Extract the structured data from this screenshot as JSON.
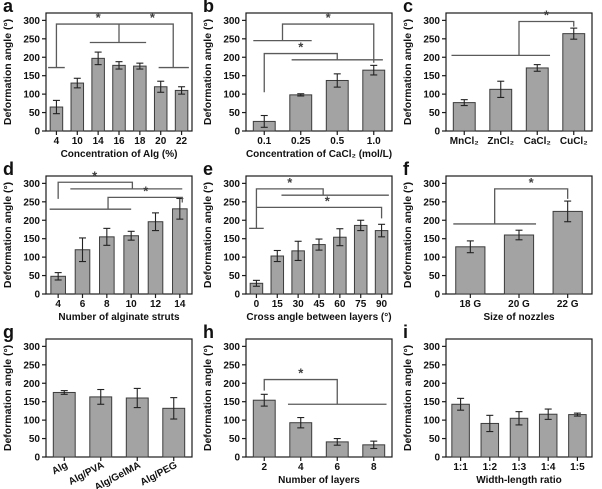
{
  "colors": {
    "bar_fill": "#a3a3a3",
    "bar_stroke": "#3c3c3c",
    "axis": "#1a1a1a",
    "error_bar": "#222222",
    "significance_line": "#5a5a5a",
    "text": "#111111",
    "background": "#ffffff"
  },
  "chart_data": [
    {
      "letter": "a",
      "type": "bar",
      "categories": [
        "4",
        "10",
        "14",
        "16",
        "18",
        "20",
        "22"
      ],
      "values": [
        65,
        130,
        197,
        178,
        176,
        120,
        110
      ],
      "errors": [
        18,
        13,
        17,
        10,
        8,
        15,
        10
      ],
      "xlabel": "Concentration of Alg (%)",
      "ylabel": "Deformation angle (°)",
      "ylim": [
        0,
        320
      ],
      "yticks": [
        0,
        50,
        100,
        150,
        200,
        250,
        300
      ],
      "rotated_xticks": false,
      "significance": {
        "label": "*",
        "lines": [
          [
            [
              -0.4,
              172
            ],
            [
              0.4,
              172
            ]
          ],
          [
            [
              0,
              172
            ],
            [
              0,
              290
            ],
            [
              5.6,
              290
            ],
            [
              5.6,
              172
            ]
          ],
          [
            [
              4.9,
              172
            ],
            [
              6.35,
              172
            ]
          ],
          [
            [
              3,
              290
            ],
            [
              3,
              240
            ]
          ],
          [
            [
              1.6,
              240
            ],
            [
              4.3,
              240
            ]
          ]
        ],
        "stars": [
          [
            2.0,
            290
          ],
          [
            4.6,
            290
          ]
        ]
      }
    },
    {
      "letter": "b",
      "type": "bar",
      "categories": [
        "0.1",
        "0.25",
        "0.5",
        "1.0"
      ],
      "values": [
        26,
        98,
        137,
        165
      ],
      "errors": [
        16,
        3,
        18,
        13
      ],
      "xlabel": "Concentration of CaCl₂ (mol/L)",
      "ylabel": "Deformation angle (°)",
      "ylim": [
        0,
        320
      ],
      "yticks": [
        0,
        50,
        100,
        150,
        200,
        250,
        300
      ],
      "rotated_xticks": false,
      "significance": {
        "label": "*",
        "lines": [
          [
            [
              -0.3,
              245
            ],
            [
              1.3,
              245
            ]
          ],
          [
            [
              0.5,
              245
            ],
            [
              0.5,
              290
            ],
            [
              3,
              290
            ],
            [
              3,
              185
            ]
          ],
          [
            [
              0,
              105
            ],
            [
              0,
              210
            ],
            [
              2,
              210
            ],
            [
              2,
              193
            ]
          ],
          [
            [
              0.75,
              193
            ],
            [
              3.25,
              193
            ]
          ]
        ],
        "stars": [
          [
            1.75,
            290
          ],
          [
            1.0,
            210
          ]
        ]
      }
    },
    {
      "letter": "c",
      "type": "bar",
      "categories": [
        "MnCl₂",
        "ZnCl₂",
        "CaCl₂",
        "CuCl₂"
      ],
      "values": [
        77,
        113,
        171,
        264
      ],
      "errors": [
        8,
        22,
        9,
        15
      ],
      "xlabel": "",
      "ylabel": "Deformation angle (°)",
      "ylim": [
        0,
        320
      ],
      "yticks": [
        0,
        50,
        100,
        150,
        200,
        250,
        300
      ],
      "rotated_xticks": false,
      "significance": {
        "label": "*",
        "lines": [
          [
            [
              -0.35,
              205
            ],
            [
              2.35,
              205
            ]
          ],
          [
            [
              1.5,
              205
            ],
            [
              1.5,
              297
            ],
            [
              3,
              297
            ],
            [
              3,
              283
            ]
          ]
        ],
        "stars": [
          [
            2.25,
            297
          ]
        ]
      }
    },
    {
      "letter": "d",
      "type": "bar",
      "categories": [
        "4",
        "6",
        "8",
        "10",
        "12",
        "14"
      ],
      "values": [
        48,
        120,
        155,
        158,
        196,
        231
      ],
      "errors": [
        10,
        32,
        23,
        12,
        24,
        28
      ],
      "xlabel": "Number of alginate struts",
      "ylabel": "Deformation angle (°)",
      "ylim": [
        0,
        320
      ],
      "yticks": [
        0,
        50,
        100,
        150,
        200,
        250,
        300
      ],
      "rotated_xticks": false,
      "significance": {
        "label": "*",
        "lines": [
          [
            [
              0,
              258
            ],
            [
              0,
              303
            ],
            [
              3.05,
              303
            ],
            [
              3.05,
              285
            ]
          ],
          [
            [
              0.5,
              285
            ],
            [
              5.1,
              285
            ]
          ],
          [
            [
              2.05,
              230
            ],
            [
              2.05,
              262
            ],
            [
              5.1,
              262
            ],
            [
              5.1,
              248
            ]
          ],
          [
            [
              -0.35,
              230
            ],
            [
              3.0,
              230
            ]
          ]
        ],
        "stars": [
          [
            1.5,
            303
          ],
          [
            3.6,
            262
          ]
        ]
      }
    },
    {
      "letter": "e",
      "type": "bar",
      "categories": [
        "0",
        "15",
        "30",
        "45",
        "60",
        "75",
        "90"
      ],
      "values": [
        29,
        103,
        117,
        134,
        154,
        186,
        172
      ],
      "errors": [
        8,
        15,
        26,
        15,
        23,
        14,
        17
      ],
      "xlabel": "Cross angle between layers (°)",
      "ylabel": "Deformation angle (°)",
      "ylim": [
        0,
        320
      ],
      "yticks": [
        0,
        50,
        100,
        150,
        200,
        250,
        300
      ],
      "rotated_xticks": false,
      "significance": {
        "label": "*",
        "lines": [
          [
            [
              -0.35,
              178
            ],
            [
              0.35,
              178
            ]
          ],
          [
            [
              0,
              178
            ],
            [
              0,
              285
            ],
            [
              3.2,
              285
            ],
            [
              3.2,
              268
            ]
          ],
          [
            [
              1.2,
              268
            ],
            [
              6.35,
              268
            ]
          ],
          [
            [
              0,
              235
            ],
            [
              6,
              235
            ],
            [
              6,
              205
            ]
          ]
        ],
        "stars": [
          [
            1.6,
            285
          ],
          [
            3.4,
            235
          ]
        ]
      }
    },
    {
      "letter": "f",
      "type": "bar",
      "categories": [
        "18 G",
        "20 G",
        "22 G"
      ],
      "values": [
        128,
        160,
        224
      ],
      "errors": [
        16,
        13,
        28
      ],
      "xlabel": "Size of nozzles",
      "ylabel": "Deformation angle (°)",
      "ylim": [
        0,
        320
      ],
      "yticks": [
        0,
        50,
        100,
        150,
        200,
        250,
        300
      ],
      "rotated_xticks": false,
      "significance": {
        "label": "*",
        "lines": [
          [
            [
              -0.35,
              190
            ],
            [
              1.35,
              190
            ]
          ],
          [
            [
              0.5,
              190
            ],
            [
              0.5,
              285
            ],
            [
              2,
              285
            ],
            [
              2,
              258
            ]
          ]
        ],
        "stars": [
          [
            1.25,
            285
          ]
        ]
      }
    },
    {
      "letter": "g",
      "type": "bar",
      "categories": [
        "Alg",
        "Alg/PVA",
        "Alg/GelMA",
        "Alg/PEG"
      ],
      "values": [
        175,
        163,
        160,
        132
      ],
      "errors": [
        5,
        20,
        26,
        29
      ],
      "xlabel": "",
      "ylabel": "Deformation angle (°)",
      "ylim": [
        0,
        320
      ],
      "yticks": [
        0,
        50,
        100,
        150,
        200,
        250,
        300
      ],
      "rotated_xticks": true,
      "significance": {
        "label": "*",
        "lines": [],
        "stars": []
      }
    },
    {
      "letter": "h",
      "type": "bar",
      "categories": [
        "2",
        "4",
        "6",
        "8"
      ],
      "values": [
        154,
        93,
        41,
        33
      ],
      "errors": [
        16,
        14,
        9,
        10
      ],
      "xlabel": "Number of layers",
      "ylabel": "Deformation angle (°)",
      "ylim": [
        0,
        320
      ],
      "yticks": [
        0,
        50,
        100,
        150,
        200,
        250,
        300
      ],
      "rotated_xticks": false,
      "significance": {
        "label": "*",
        "lines": [
          [
            [
              0,
              180
            ],
            [
              0,
              210
            ],
            [
              2,
              210
            ],
            [
              2,
              143
            ]
          ],
          [
            [
              0.65,
              143
            ],
            [
              3.35,
              143
            ]
          ]
        ],
        "stars": [
          [
            1.0,
            210
          ]
        ]
      }
    },
    {
      "letter": "i",
      "type": "bar",
      "categories": [
        "1:1",
        "1:2",
        "1:3",
        "1:4",
        "1:5"
      ],
      "values": [
        143,
        91,
        105,
        116,
        115
      ],
      "errors": [
        16,
        22,
        18,
        14,
        4
      ],
      "xlabel": "Width-length ratio",
      "ylabel": "Deformation angle (°)",
      "ylim": [
        0,
        320
      ],
      "yticks": [
        0,
        50,
        100,
        150,
        200,
        250,
        300
      ],
      "rotated_xticks": false,
      "significance": {
        "label": "*",
        "lines": [],
        "stars": []
      }
    }
  ]
}
